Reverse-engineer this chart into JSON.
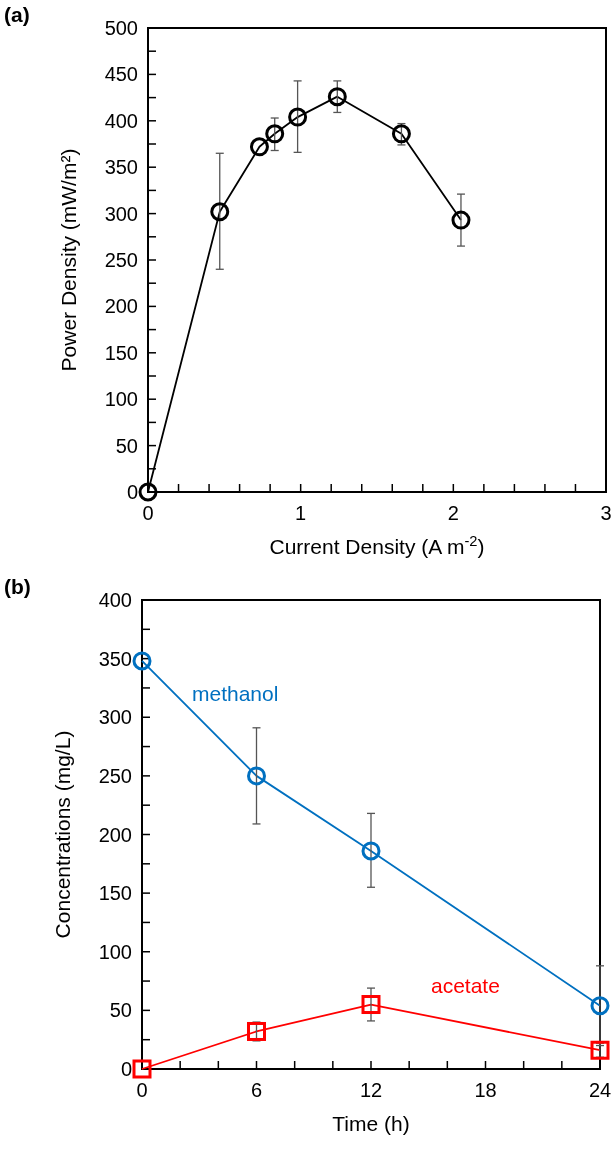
{
  "chart_data": [
    {
      "type": "line",
      "title": "(a)",
      "xlabel": "Current Density (A m$^{-2}$)",
      "ylabel": "Power Density (mW/m²)",
      "x": [
        0,
        0.47,
        0.73,
        0.83,
        0.98,
        1.24,
        1.66,
        2.05
      ],
      "series": [
        {
          "color": "#000000",
          "marker": "circle",
          "values": [
            0,
            302,
            372,
            386,
            404,
            426,
            386,
            293
          ],
          "errors": [
            null,
            [
              240,
              365
            ],
            null,
            [
              368,
              403
            ],
            [
              366,
              443
            ],
            [
              409,
              443
            ],
            [
              374,
              397
            ],
            [
              265,
              321
            ]
          ]
        }
      ],
      "xlim": [
        0,
        3
      ],
      "xticks": [
        0,
        {
          "value": 0.2,
          "label": null
        },
        {
          "value": 0.4,
          "label": null
        },
        {
          "value": 0.6,
          "label": null
        },
        {
          "value": 0.8,
          "label": null
        },
        1,
        {
          "value": 1.2,
          "label": null
        },
        {
          "value": 1.4,
          "label": null
        },
        {
          "value": 1.6,
          "label": null
        },
        {
          "value": 1.8,
          "label": null
        },
        2,
        {
          "value": 2.2,
          "label": null
        },
        {
          "value": 2.4,
          "label": null
        },
        {
          "value": 2.6,
          "label": null
        },
        {
          "value": 2.8,
          "label": null
        },
        3
      ],
      "ylim": [
        0,
        500
      ],
      "yticks": [
        0,
        {
          "value": 25,
          "label": null
        },
        50,
        {
          "value": 75,
          "label": null
        },
        100,
        {
          "value": 125,
          "label": null
        },
        150,
        {
          "value": 175,
          "label": null
        },
        200,
        {
          "value": 225,
          "label": null
        },
        250,
        {
          "value": 275,
          "label": null
        },
        300,
        {
          "value": 325,
          "label": null
        },
        350,
        {
          "value": 375,
          "label": null
        },
        400,
        {
          "value": 425,
          "label": null
        },
        450,
        {
          "value": 475,
          "label": null
        },
        500
      ],
      "grid": false,
      "line_style": "solid"
    },
    {
      "type": "line",
      "title": "(b)",
      "xlabel": "Time (h)",
      "ylabel": "Concentrations (mg/L)",
      "x": [
        0,
        6,
        12,
        24
      ],
      "series": [
        {
          "name": "methanol",
          "color": "#0070c0",
          "marker": "circle",
          "values": [
            348,
            250,
            186,
            54
          ],
          "errors": [
            null,
            [
              209,
              291
            ],
            [
              155,
              218
            ],
            [
              20,
              88
            ]
          ]
        },
        {
          "name": "acetate",
          "color": "#ff0000",
          "marker": "square",
          "values": [
            0,
            32,
            55,
            16
          ],
          "errors": [
            null,
            [
              24,
              40
            ],
            [
              41,
              69
            ],
            [
              10,
              22
            ]
          ]
        }
      ],
      "xlim": [
        0,
        24
      ],
      "xticks": [
        0,
        {
          "value": 2,
          "label": null
        },
        {
          "value": 4,
          "label": null
        },
        6,
        {
          "value": 8,
          "label": null
        },
        {
          "value": 10,
          "label": null
        },
        12,
        {
          "value": 14,
          "label": null
        },
        {
          "value": 16,
          "label": null
        },
        18,
        {
          "value": 20,
          "label": null
        },
        {
          "value": 22,
          "label": null
        },
        24
      ],
      "ylim": [
        0,
        400
      ],
      "yticks": [
        0,
        {
          "value": 25,
          "label": null
        },
        50,
        {
          "value": 75,
          "label": null
        },
        100,
        {
          "value": 125,
          "label": null
        },
        150,
        {
          "value": 175,
          "label": null
        },
        200,
        {
          "value": 225,
          "label": null
        },
        250,
        {
          "value": 275,
          "label": null
        },
        300,
        {
          "value": 325,
          "label": null
        },
        350,
        {
          "value": 375,
          "label": null
        },
        400
      ],
      "grid": false,
      "line_style": "solid"
    }
  ]
}
